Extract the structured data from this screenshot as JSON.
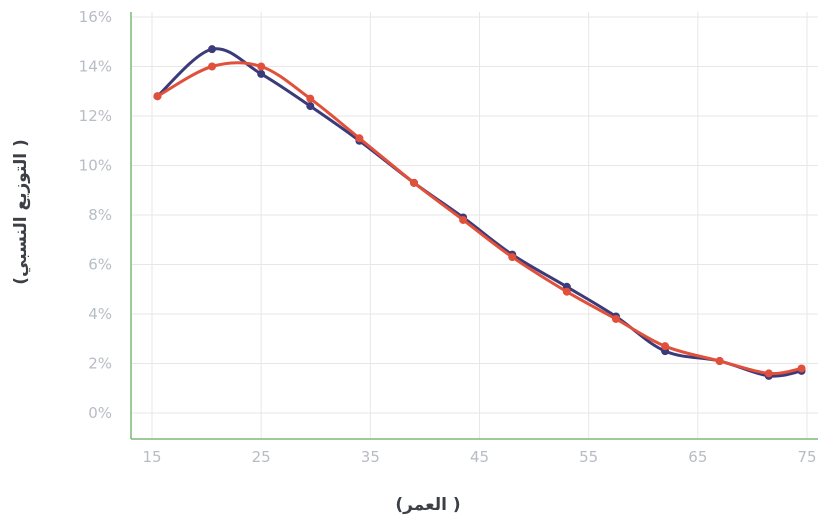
{
  "chart_data": {
    "type": "line",
    "xlabel": "(العمر )",
    "ylabel": "(التوزيع النسبي )",
    "x_ticks": [
      "15",
      "25",
      "35",
      "45",
      "55",
      "65",
      "75"
    ],
    "y_ticks": [
      "0%",
      "2%",
      "4%",
      "6%",
      "8%",
      "10%",
      "12%",
      "14%",
      "16%"
    ],
    "xlim": [
      15,
      75
    ],
    "ylim": [
      0,
      16
    ],
    "grid": true,
    "series": [
      {
        "color": "#3b3a7a",
        "x": [
          15.5,
          20.5,
          25,
          29.5,
          34,
          39,
          43.5,
          48,
          53,
          57.5,
          62,
          67,
          71.5,
          74.5
        ],
        "y": [
          12.8,
          14.7,
          13.7,
          12.4,
          11.0,
          9.3,
          7.9,
          6.4,
          5.1,
          3.9,
          2.5,
          2.1,
          1.5,
          1.7
        ]
      },
      {
        "color": "#e0503a",
        "x": [
          15.5,
          20.5,
          25,
          29.5,
          34,
          39,
          43.5,
          48,
          53,
          57.5,
          62,
          67,
          71.5,
          74.5
        ],
        "y": [
          12.8,
          14.0,
          14.0,
          12.7,
          11.1,
          9.3,
          7.8,
          6.3,
          4.9,
          3.8,
          2.7,
          2.1,
          1.6,
          1.8
        ]
      }
    ]
  }
}
